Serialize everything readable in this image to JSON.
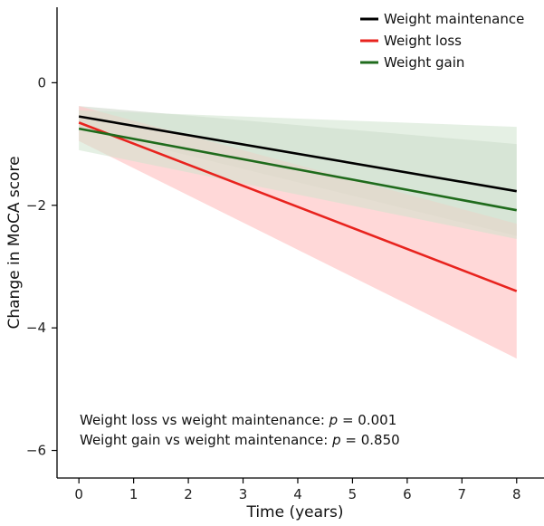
{
  "chart_data": {
    "type": "line",
    "title": "",
    "xlabel": "Time (years)",
    "ylabel": "Change in MoCA score",
    "xlim": [
      -0.4,
      8.5
    ],
    "ylim": [
      -6.45,
      1.35
    ],
    "xticks": [
      0,
      1,
      2,
      3,
      4,
      5,
      6,
      7,
      8
    ],
    "yticks": [
      0,
      -2,
      -4,
      -6
    ],
    "ytick_labels": [
      "0",
      "−2",
      "−4",
      "−6"
    ],
    "grid": false,
    "legend_position": "top-right",
    "series": [
      {
        "name": "Weight maintenance",
        "color": "#000000",
        "band_color": "#c9d4c4",
        "x": [
          0,
          8
        ],
        "values": [
          -0.55,
          -1.77
        ],
        "ci_lower": [
          -0.75,
          -2.5
        ],
        "ci_upper": [
          -0.38,
          -1.0
        ]
      },
      {
        "name": "Weight loss",
        "color": "#e8231e",
        "band_color": "#ffc8c8",
        "x": [
          0,
          8
        ],
        "values": [
          -0.65,
          -3.4
        ],
        "ci_lower": [
          -0.95,
          -4.5
        ],
        "ci_upper": [
          -0.38,
          -2.3
        ]
      },
      {
        "name": "Weight gain",
        "color": "#1f6b1c",
        "band_color": "#cfe3cd",
        "x": [
          0,
          8
        ],
        "values": [
          -0.75,
          -2.08
        ],
        "ci_lower": [
          -1.1,
          -2.55
        ],
        "ci_upper": [
          -0.45,
          -0.72
        ]
      }
    ],
    "annotations": [
      {
        "prefix": "Weight loss vs weight maintenance: ",
        "italic": "p",
        "suffix": " = 0.001"
      },
      {
        "prefix": "Weight gain vs weight maintenance: ",
        "italic": "p",
        "suffix": " = 0.850"
      }
    ]
  }
}
